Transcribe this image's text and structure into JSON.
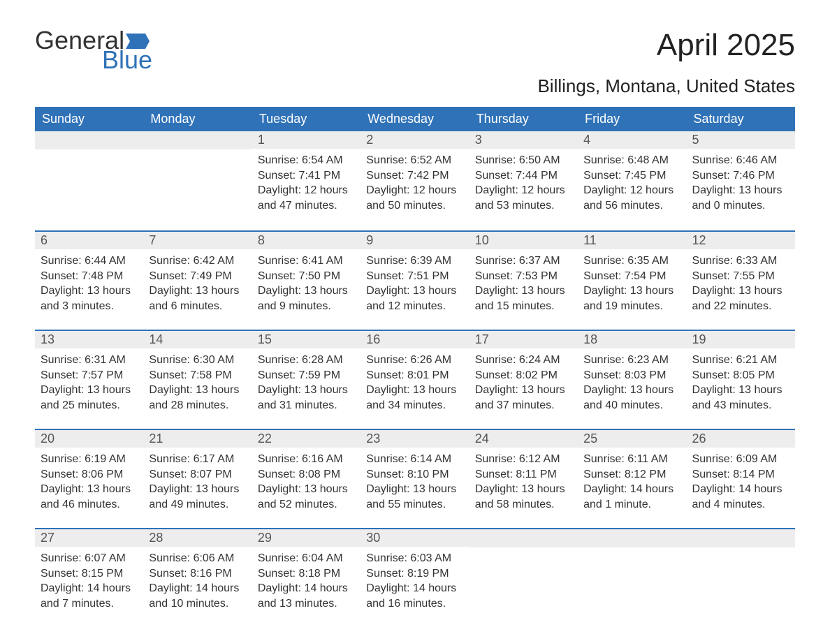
{
  "logo": {
    "word1": "General",
    "word2": "Blue",
    "word1_color": "#333333",
    "word2_color": "#2f72b8",
    "flag_color": "#2f72b8"
  },
  "title": "April 2025",
  "subtitle": "Billings, Montana, United States",
  "colors": {
    "header_bg": "#2f72b8",
    "header_text": "#ffffff",
    "daynum_bg": "#ededed",
    "daynum_text": "#555555",
    "body_text": "#333333",
    "week_divider": "#2f72b8",
    "page_bg": "#ffffff"
  },
  "fontsizes": {
    "title": 44,
    "subtitle": 26,
    "dayheader": 18,
    "daynum": 18,
    "daytext": 16,
    "logo": 36
  },
  "day_headers": [
    "Sunday",
    "Monday",
    "Tuesday",
    "Wednesday",
    "Thursday",
    "Friday",
    "Saturday"
  ],
  "weeks": [
    [
      null,
      null,
      {
        "n": "1",
        "sunrise": "6:54 AM",
        "sunset": "7:41 PM",
        "daylight": "12 hours and 47 minutes."
      },
      {
        "n": "2",
        "sunrise": "6:52 AM",
        "sunset": "7:42 PM",
        "daylight": "12 hours and 50 minutes."
      },
      {
        "n": "3",
        "sunrise": "6:50 AM",
        "sunset": "7:44 PM",
        "daylight": "12 hours and 53 minutes."
      },
      {
        "n": "4",
        "sunrise": "6:48 AM",
        "sunset": "7:45 PM",
        "daylight": "12 hours and 56 minutes."
      },
      {
        "n": "5",
        "sunrise": "6:46 AM",
        "sunset": "7:46 PM",
        "daylight": "13 hours and 0 minutes."
      }
    ],
    [
      {
        "n": "6",
        "sunrise": "6:44 AM",
        "sunset": "7:48 PM",
        "daylight": "13 hours and 3 minutes."
      },
      {
        "n": "7",
        "sunrise": "6:42 AM",
        "sunset": "7:49 PM",
        "daylight": "13 hours and 6 minutes."
      },
      {
        "n": "8",
        "sunrise": "6:41 AM",
        "sunset": "7:50 PM",
        "daylight": "13 hours and 9 minutes."
      },
      {
        "n": "9",
        "sunrise": "6:39 AM",
        "sunset": "7:51 PM",
        "daylight": "13 hours and 12 minutes."
      },
      {
        "n": "10",
        "sunrise": "6:37 AM",
        "sunset": "7:53 PM",
        "daylight": "13 hours and 15 minutes."
      },
      {
        "n": "11",
        "sunrise": "6:35 AM",
        "sunset": "7:54 PM",
        "daylight": "13 hours and 19 minutes."
      },
      {
        "n": "12",
        "sunrise": "6:33 AM",
        "sunset": "7:55 PM",
        "daylight": "13 hours and 22 minutes."
      }
    ],
    [
      {
        "n": "13",
        "sunrise": "6:31 AM",
        "sunset": "7:57 PM",
        "daylight": "13 hours and 25 minutes."
      },
      {
        "n": "14",
        "sunrise": "6:30 AM",
        "sunset": "7:58 PM",
        "daylight": "13 hours and 28 minutes."
      },
      {
        "n": "15",
        "sunrise": "6:28 AM",
        "sunset": "7:59 PM",
        "daylight": "13 hours and 31 minutes."
      },
      {
        "n": "16",
        "sunrise": "6:26 AM",
        "sunset": "8:01 PM",
        "daylight": "13 hours and 34 minutes."
      },
      {
        "n": "17",
        "sunrise": "6:24 AM",
        "sunset": "8:02 PM",
        "daylight": "13 hours and 37 minutes."
      },
      {
        "n": "18",
        "sunrise": "6:23 AM",
        "sunset": "8:03 PM",
        "daylight": "13 hours and 40 minutes."
      },
      {
        "n": "19",
        "sunrise": "6:21 AM",
        "sunset": "8:05 PM",
        "daylight": "13 hours and 43 minutes."
      }
    ],
    [
      {
        "n": "20",
        "sunrise": "6:19 AM",
        "sunset": "8:06 PM",
        "daylight": "13 hours and 46 minutes."
      },
      {
        "n": "21",
        "sunrise": "6:17 AM",
        "sunset": "8:07 PM",
        "daylight": "13 hours and 49 minutes."
      },
      {
        "n": "22",
        "sunrise": "6:16 AM",
        "sunset": "8:08 PM",
        "daylight": "13 hours and 52 minutes."
      },
      {
        "n": "23",
        "sunrise": "6:14 AM",
        "sunset": "8:10 PM",
        "daylight": "13 hours and 55 minutes."
      },
      {
        "n": "24",
        "sunrise": "6:12 AM",
        "sunset": "8:11 PM",
        "daylight": "13 hours and 58 minutes."
      },
      {
        "n": "25",
        "sunrise": "6:11 AM",
        "sunset": "8:12 PM",
        "daylight": "14 hours and 1 minute."
      },
      {
        "n": "26",
        "sunrise": "6:09 AM",
        "sunset": "8:14 PM",
        "daylight": "14 hours and 4 minutes."
      }
    ],
    [
      {
        "n": "27",
        "sunrise": "6:07 AM",
        "sunset": "8:15 PM",
        "daylight": "14 hours and 7 minutes."
      },
      {
        "n": "28",
        "sunrise": "6:06 AM",
        "sunset": "8:16 PM",
        "daylight": "14 hours and 10 minutes."
      },
      {
        "n": "29",
        "sunrise": "6:04 AM",
        "sunset": "8:18 PM",
        "daylight": "14 hours and 13 minutes."
      },
      {
        "n": "30",
        "sunrise": "6:03 AM",
        "sunset": "8:19 PM",
        "daylight": "14 hours and 16 minutes."
      },
      null,
      null,
      null
    ]
  ],
  "labels": {
    "sunrise": "Sunrise:",
    "sunset": "Sunset:",
    "daylight": "Daylight:"
  }
}
